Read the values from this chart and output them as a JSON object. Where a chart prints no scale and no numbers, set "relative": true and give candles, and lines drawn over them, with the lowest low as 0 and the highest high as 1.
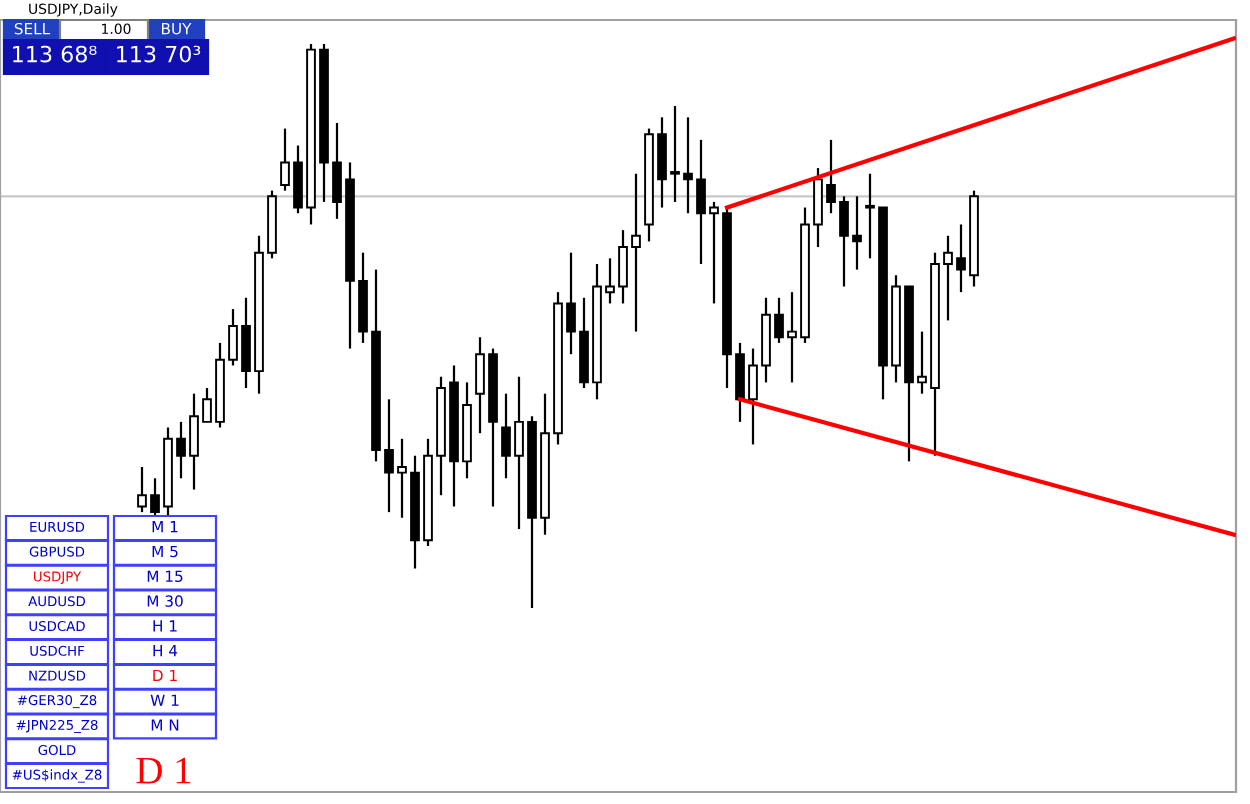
{
  "chart_data": {
    "type": "candlestick",
    "title": "USDJPY,Daily",
    "relative": true,
    "categories": [
      null,
      null,
      null,
      null,
      null,
      null,
      null,
      null,
      null,
      null,
      null,
      null,
      null,
      null,
      null,
      null,
      null,
      null,
      null,
      null,
      null,
      null,
      null,
      null,
      null,
      null,
      null,
      null,
      null,
      null,
      null,
      null,
      null,
      null,
      null,
      null,
      null,
      null,
      null,
      null,
      null,
      null,
      null,
      null,
      null,
      null,
      null,
      null,
      null,
      null,
      null,
      null,
      null,
      null,
      null,
      null,
      null,
      null,
      null,
      null,
      null,
      null,
      null,
      null,
      null,
      null,
      null,
      null,
      null,
      null,
      null,
      null,
      null,
      null,
      null,
      null,
      null,
      null,
      null,
      null,
      null,
      null,
      null,
      null,
      null,
      null
    ],
    "ohlc": [
      [
        0.18,
        0.25,
        0.17,
        0.2
      ],
      [
        0.2,
        0.23,
        0.16,
        0.17
      ],
      [
        0.18,
        0.32,
        0.16,
        0.3
      ],
      [
        0.3,
        0.33,
        0.23,
        0.27
      ],
      [
        0.27,
        0.38,
        0.21,
        0.34
      ],
      [
        0.33,
        0.39,
        0.33,
        0.37
      ],
      [
        0.33,
        0.47,
        0.32,
        0.44
      ],
      [
        0.44,
        0.53,
        0.43,
        0.5
      ],
      [
        0.5,
        0.55,
        0.39,
        0.42
      ],
      [
        0.42,
        0.66,
        0.38,
        0.63
      ],
      [
        0.63,
        0.74,
        0.62,
        0.73
      ],
      [
        0.75,
        0.85,
        0.74,
        0.79
      ],
      [
        0.79,
        0.82,
        0.7,
        0.71
      ],
      [
        0.71,
        1.0,
        0.68,
        0.99
      ],
      [
        0.99,
        1.0,
        0.72,
        0.79
      ],
      [
        0.79,
        0.86,
        0.69,
        0.72
      ],
      [
        0.76,
        0.79,
        0.46,
        0.58
      ],
      [
        0.58,
        0.63,
        0.47,
        0.49
      ],
      [
        0.49,
        0.6,
        0.26,
        0.28
      ],
      [
        0.28,
        0.37,
        0.17,
        0.24
      ],
      [
        0.24,
        0.3,
        0.16,
        0.25
      ],
      [
        0.24,
        0.27,
        0.07,
        0.12
      ],
      [
        0.12,
        0.3,
        0.11,
        0.27
      ],
      [
        0.27,
        0.41,
        0.2,
        0.39
      ],
      [
        0.4,
        0.43,
        0.18,
        0.26
      ],
      [
        0.26,
        0.4,
        0.23,
        0.36
      ],
      [
        0.38,
        0.48,
        0.31,
        0.45
      ],
      [
        0.45,
        0.46,
        0.18,
        0.33
      ],
      [
        0.32,
        0.38,
        0.23,
        0.27
      ],
      [
        0.27,
        0.41,
        0.14,
        0.33
      ],
      [
        0.33,
        0.34,
        0.0,
        0.16
      ],
      [
        0.16,
        0.38,
        0.13,
        0.31
      ],
      [
        0.31,
        0.56,
        0.29,
        0.54
      ],
      [
        0.54,
        0.63,
        0.45,
        0.49
      ],
      [
        0.49,
        0.55,
        0.39,
        0.4
      ],
      [
        0.4,
        0.61,
        0.37,
        0.57
      ],
      [
        0.56,
        0.62,
        0.54,
        0.57
      ],
      [
        0.57,
        0.67,
        0.54,
        0.64
      ],
      [
        0.64,
        0.77,
        0.49,
        0.66
      ],
      [
        0.68,
        0.85,
        0.65,
        0.84
      ],
      [
        0.84,
        0.87,
        0.71,
        0.76
      ],
      [
        0.77,
        0.89,
        0.72,
        0.77
      ],
      [
        0.77,
        0.87,
        0.7,
        0.76
      ],
      [
        0.76,
        0.83,
        0.61,
        0.7
      ],
      [
        0.7,
        0.72,
        0.54,
        0.71
      ],
      [
        0.7,
        0.71,
        0.39,
        0.45
      ],
      [
        0.45,
        0.47,
        0.33,
        0.37
      ],
      [
        0.37,
        0.46,
        0.29,
        0.43
      ],
      [
        0.43,
        0.55,
        0.4,
        0.52
      ],
      [
        0.52,
        0.55,
        0.47,
        0.48
      ],
      [
        0.48,
        0.56,
        0.4,
        0.49
      ],
      [
        0.48,
        0.71,
        0.47,
        0.68
      ],
      [
        0.68,
        0.78,
        0.64,
        0.76
      ],
      [
        0.75,
        0.83,
        0.7,
        0.72
      ],
      [
        0.72,
        0.73,
        0.57,
        0.66
      ],
      [
        0.66,
        0.73,
        0.6,
        0.65
      ],
      [
        0.71,
        0.77,
        0.62,
        0.71
      ],
      [
        0.71,
        0.71,
        0.37,
        0.43
      ],
      [
        0.43,
        0.59,
        0.4,
        0.57
      ],
      [
        0.57,
        0.57,
        0.26,
        0.4
      ],
      [
        0.4,
        0.49,
        0.38,
        0.41
      ],
      [
        0.39,
        0.63,
        0.27,
        0.61
      ],
      [
        0.61,
        0.66,
        0.51,
        0.63
      ],
      [
        0.62,
        0.68,
        0.56,
        0.6
      ],
      [
        0.59,
        0.74,
        0.57,
        0.73
      ],
      null,
      null,
      null,
      null,
      null,
      null,
      null,
      null,
      null,
      null,
      null,
      null,
      null,
      null,
      null,
      null,
      null,
      null,
      null,
      null,
      null
    ],
    "series": [
      {
        "type": "line",
        "values": [
          null,
          null,
          null,
          null,
          null,
          null,
          null,
          null,
          null,
          null,
          null,
          null,
          null,
          null,
          null,
          null,
          null,
          null,
          null,
          null,
          null,
          null,
          null,
          null,
          null,
          null,
          null,
          null,
          null,
          null,
          null,
          null,
          null,
          null,
          null,
          null,
          null,
          null,
          null,
          null,
          null,
          null,
          null,
          null,
          null,
          0.71,
          null,
          null,
          null,
          null,
          null,
          null,
          null,
          null,
          null,
          null,
          null,
          null,
          null,
          null,
          null,
          null,
          null,
          null,
          null,
          null,
          null,
          null,
          null,
          null,
          null,
          null,
          null,
          null,
          null,
          null,
          null,
          null,
          null,
          null,
          null,
          null,
          null,
          null,
          1.01,
          null
        ],
        "color": "#ff0000"
      },
      {
        "type": "line",
        "values": [
          null,
          null,
          null,
          null,
          null,
          null,
          null,
          null,
          null,
          null,
          null,
          null,
          null,
          null,
          null,
          null,
          null,
          null,
          null,
          null,
          null,
          null,
          null,
          null,
          null,
          null,
          null,
          null,
          null,
          null,
          null,
          null,
          null,
          null,
          null,
          null,
          null,
          null,
          null,
          null,
          null,
          null,
          null,
          null,
          null,
          null,
          0.37,
          null,
          null,
          null,
          null,
          null,
          null,
          null,
          null,
          null,
          null,
          null,
          null,
          null,
          null,
          null,
          null,
          null,
          null,
          null,
          null,
          null,
          null,
          null,
          null,
          null,
          null,
          null,
          null,
          null,
          null,
          null,
          null,
          null,
          null,
          null,
          null,
          null,
          0.13,
          null
        ],
        "color": "#ff0000"
      }
    ],
    "ref_lines": [
      {
        "axis": "y",
        "value": 0.73,
        "label": null,
        "color": "#c8c8c8"
      }
    ],
    "annotations": [
      "SELL",
      "1.00",
      "BUY",
      "113 68⁸",
      "113 70³",
      "EURUSD",
      "GBPUSD",
      "USDJPY",
      "AUDUSD",
      "USDCAD",
      "USDCHF",
      "NZDUSD",
      "#GER30_Z8",
      "#JPN225_Z8",
      "GOLD",
      "#US$indx_Z8",
      "M 1",
      "M 5",
      "M 15",
      "M 30",
      "H 1",
      "H 4",
      "D 1",
      "W 1",
      "M N",
      "D 1"
    ]
  }
}
